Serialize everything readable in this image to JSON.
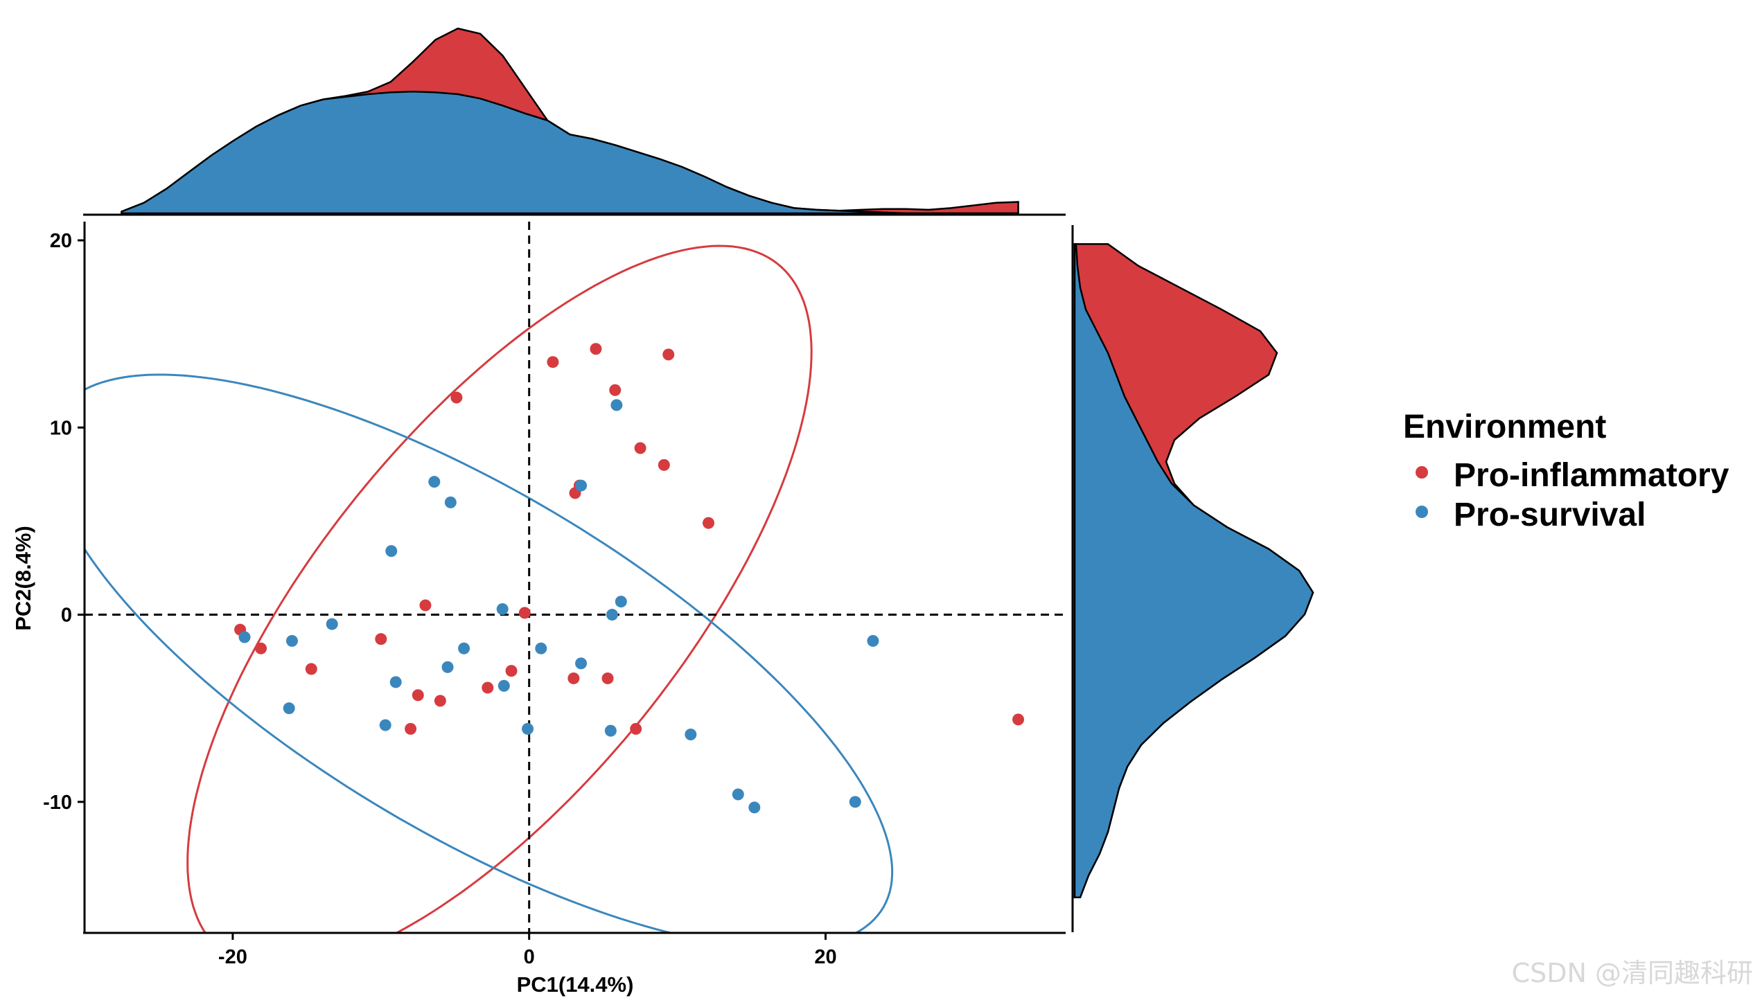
{
  "chart_data": {
    "type": "scatter",
    "xlabel": "PC1(14.4%)",
    "ylabel": "PC2(8.4%)",
    "xlim": [
      -30,
      36.2
    ],
    "ylim": [
      -17,
      21
    ],
    "xticks": [
      -20,
      0,
      20
    ],
    "yticks": [
      -10,
      0,
      10,
      20
    ],
    "x_tick_labels": [
      "-20",
      "0",
      "20"
    ],
    "y_tick_labels": [
      "-10",
      "0",
      "10",
      "20"
    ],
    "reference_lines": {
      "x": 0,
      "y": 0,
      "style": "dashed"
    },
    "legend": {
      "title": "Environment",
      "position": "right",
      "entries": [
        "Pro-inflammatory",
        "Pro-survival"
      ]
    },
    "series": [
      {
        "name": "Pro-inflammatory",
        "color": "#D63B3F",
        "points": [
          [
            1.6,
            13.5
          ],
          [
            4.5,
            14.2
          ],
          [
            9.4,
            13.9
          ],
          [
            5.8,
            12.0
          ],
          [
            -4.9,
            11.6
          ],
          [
            7.5,
            8.9
          ],
          [
            9.1,
            8.0
          ],
          [
            3.4,
            6.9
          ],
          [
            3.1,
            6.5
          ],
          [
            12.1,
            4.9
          ],
          [
            -7.0,
            0.5
          ],
          [
            -0.3,
            0.1
          ],
          [
            -19.5,
            -0.8
          ],
          [
            -18.1,
            -1.8
          ],
          [
            -10.0,
            -1.3
          ],
          [
            -14.7,
            -2.9
          ],
          [
            -1.2,
            -3.0
          ],
          [
            3.0,
            -3.4
          ],
          [
            5.3,
            -3.4
          ],
          [
            -2.8,
            -3.9
          ],
          [
            -7.5,
            -4.3
          ],
          [
            -6.0,
            -4.6
          ],
          [
            -8.0,
            -6.1
          ],
          [
            7.2,
            -6.1
          ],
          [
            33.0,
            -5.6
          ]
        ]
      },
      {
        "name": "Pro-survival",
        "color": "#3A87BD",
        "points": [
          [
            5.9,
            11.2
          ],
          [
            -6.4,
            7.1
          ],
          [
            -5.3,
            6.0
          ],
          [
            3.5,
            6.9
          ],
          [
            -9.3,
            3.4
          ],
          [
            -1.8,
            0.3
          ],
          [
            5.6,
            0.0
          ],
          [
            6.2,
            0.7
          ],
          [
            -19.2,
            -1.2
          ],
          [
            -16.0,
            -1.4
          ],
          [
            -13.3,
            -0.5
          ],
          [
            -4.4,
            -1.8
          ],
          [
            0.8,
            -1.8
          ],
          [
            23.2,
            -1.4
          ],
          [
            -5.5,
            -2.8
          ],
          [
            3.5,
            -2.6
          ],
          [
            -9.0,
            -3.6
          ],
          [
            -1.7,
            -3.8
          ],
          [
            -16.2,
            -5.0
          ],
          [
            -9.7,
            -5.9
          ],
          [
            -0.1,
            -6.1
          ],
          [
            5.5,
            -6.2
          ],
          [
            10.9,
            -6.4
          ],
          [
            14.1,
            -9.6
          ],
          [
            15.2,
            -10.3
          ],
          [
            22.0,
            -10.0
          ]
        ]
      }
    ],
    "ellipses": [
      {
        "series": "Pro-inflammatory",
        "center": [
          -2.0,
          0.4
        ],
        "semi_axes": [
          26.4,
          10.9
        ],
        "angle_deg": 41.5
      },
      {
        "series": "Pro-survival",
        "center": [
          -4.0,
          -2.5
        ],
        "semi_axes": [
          30.9,
          9.6
        ],
        "angle_deg": -24.0
      }
    ],
    "marginal_density_x": {
      "x_range": [
        -27.5,
        33.0
      ],
      "Pro-inflammatory": [
        0.002,
        0.012,
        0.028,
        0.047,
        0.066,
        0.083,
        0.099,
        0.112,
        0.123,
        0.13,
        0.134,
        0.139,
        0.15,
        0.173,
        0.198,
        0.211,
        0.205,
        0.18,
        0.143,
        0.106,
        0.09,
        0.085,
        0.078,
        0.07,
        0.062,
        0.053,
        0.042,
        0.03,
        0.02,
        0.012,
        0.006,
        0.004,
        0.003,
        0.004,
        0.005,
        0.005,
        0.004,
        0.006,
        0.009,
        0.012,
        0.013
      ],
      "Pro-survival": [
        0.002,
        0.012,
        0.028,
        0.047,
        0.066,
        0.083,
        0.099,
        0.112,
        0.123,
        0.13,
        0.133,
        0.136,
        0.138,
        0.139,
        0.138,
        0.136,
        0.131,
        0.123,
        0.114,
        0.106,
        0.09,
        0.085,
        0.078,
        0.07,
        0.062,
        0.053,
        0.042,
        0.03,
        0.02,
        0.012,
        0.006,
        0.004,
        0.003,
        0.002,
        0.001,
        0,
        0,
        0,
        0,
        0,
        0
      ]
    },
    "marginal_density_y": {
      "y_range": [
        -15.1,
        19.8
      ],
      "Pro-inflammatory": [
        0.002,
        0.005,
        0.009,
        0.012,
        0.014,
        0.016,
        0.019,
        0.024,
        0.032,
        0.042,
        0.053,
        0.065,
        0.076,
        0.083,
        0.086,
        0.081,
        0.07,
        0.055,
        0.043,
        0.036,
        0.033,
        0.036,
        0.045,
        0.058,
        0.07,
        0.073,
        0.067,
        0.053,
        0.038,
        0.023,
        0.012
      ],
      "Pro-survival": [
        0.002,
        0.005,
        0.009,
        0.012,
        0.014,
        0.016,
        0.019,
        0.024,
        0.032,
        0.042,
        0.053,
        0.065,
        0.076,
        0.083,
        0.086,
        0.081,
        0.07,
        0.055,
        0.043,
        0.035,
        0.03,
        0.026,
        0.022,
        0.018,
        0.015,
        0.012,
        0.008,
        0.004,
        0.002,
        0.001,
        0.0005
      ]
    }
  },
  "watermark": "CSDN @清同趣科研"
}
